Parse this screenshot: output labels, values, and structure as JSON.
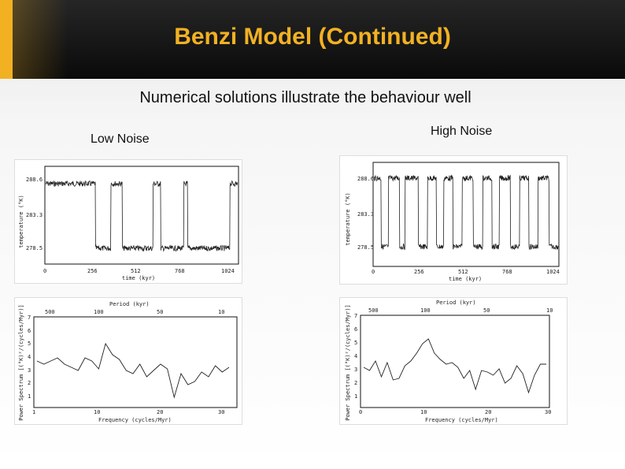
{
  "slide": {
    "title": "Benzi Model (Continued)",
    "subtitle": "Numerical solutions illustrate the behaviour well",
    "accent_color": "#f2b123",
    "header_color": "#1a1a1a"
  },
  "columns": {
    "low_label": "Low Noise",
    "high_label": "High Noise"
  },
  "low_time": {
    "y_ticks": [
      "288.6",
      "283.3",
      "278.5"
    ],
    "x_ticks": [
      "0",
      "256",
      "512",
      "768",
      "1024"
    ],
    "xlabel": "time (kyr)",
    "ylabel": "temperature (°K)"
  },
  "high_time": {
    "y_ticks": [
      "288.6",
      "283.3",
      "278.5"
    ],
    "x_ticks": [
      "0",
      "256",
      "512",
      "768",
      "1024"
    ],
    "xlabel": "time (kyr)",
    "ylabel": "temperature (°K)"
  },
  "low_spec": {
    "top_ticks": [
      "500",
      "100",
      "50",
      "10"
    ],
    "top_label": "Period (kyr)",
    "bottom_ticks": [
      "1",
      "10",
      "20",
      "30"
    ],
    "xlabel": "Frequency (cycles/Myr)",
    "ylabel": "Power Spectrum [(°K)²/(cycles/Myr)]",
    "y_ticks": [
      "7",
      "6",
      "5",
      "4",
      "3",
      "2",
      "1"
    ]
  },
  "high_spec": {
    "top_ticks": [
      "500",
      "100",
      "50",
      "10"
    ],
    "top_label": "Period (kyr)",
    "bottom_ticks": [
      "0",
      "10",
      "20",
      "30"
    ],
    "xlabel": "Frequency (cycles/Myr)",
    "ylabel": "Power Spectrum [(°K)²/(cycles/Myr)]",
    "y_ticks": [
      "7",
      "6",
      "5",
      "4",
      "3",
      "2",
      "1"
    ]
  }
}
